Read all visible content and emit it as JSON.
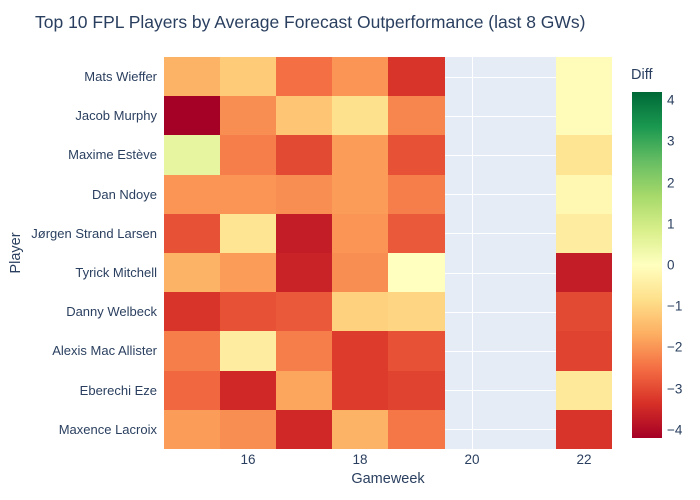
{
  "title": "Top 10 FPL Players by Average Forecast Outperformance (last 8 GWs)",
  "colors": {
    "text": "#2a3f5f",
    "page_bg": "#ffffff",
    "plot_bg": "#e5ecf6",
    "grid": "#ffffff"
  },
  "chart_data": {
    "type": "heatmap",
    "title": "Top 10 FPL Players by Average Forecast Outperformance (last 8 GWs)",
    "xlabel": "Gameweek",
    "ylabel": "Player",
    "x": [
      15,
      16,
      17,
      18,
      19,
      20,
      21,
      22
    ],
    "x_ticks_at": [
      16,
      18,
      20,
      22
    ],
    "x_tick_labels": [
      "16",
      "18",
      "20",
      "22"
    ],
    "players": [
      "Mats Wieffer",
      "Jacob Murphy",
      "Maxime Estève",
      "Dan Ndoye",
      "Jørgen Strand Larsen",
      "Tyrick Mitchell",
      "Danny Welbeck",
      "Alexis Mac Allister",
      "Eberechi Eze",
      "Maxence Lacroix"
    ],
    "z": [
      [
        -1.6,
        -1.2,
        -2.5,
        -2.0,
        -3.3,
        null,
        null,
        -0.1
      ],
      [
        -4.2,
        -2.1,
        -1.3,
        -0.8,
        -2.2,
        null,
        null,
        -0.1
      ],
      [
        0.5,
        -2.3,
        -3.0,
        -1.9,
        -2.9,
        null,
        null,
        -0.7
      ],
      [
        -2.0,
        -2.0,
        -2.1,
        -1.9,
        -2.3,
        null,
        null,
        -0.2
      ],
      [
        -2.9,
        -0.7,
        -3.7,
        -2.0,
        -2.8,
        null,
        null,
        -0.5
      ],
      [
        -1.6,
        -1.9,
        -3.6,
        -2.1,
        0.0,
        null,
        null,
        -3.7
      ],
      [
        -3.3,
        -2.9,
        -2.8,
        -1.1,
        -1.0,
        null,
        null,
        -3.0
      ],
      [
        -2.3,
        -0.5,
        -2.3,
        -3.2,
        -2.9,
        null,
        null,
        -3.1
      ],
      [
        -2.6,
        -3.5,
        -1.8,
        -3.2,
        -3.1,
        null,
        null,
        -0.6
      ],
      [
        -1.9,
        -2.1,
        -3.5,
        -1.6,
        -2.4,
        null,
        null,
        -3.3
      ]
    ],
    "zmin": -4.2,
    "zmax": 4.2,
    "grid_on": true,
    "colorbar": {
      "title": "Diff",
      "tick_values": [
        4,
        3,
        2,
        1,
        0,
        -1,
        -2,
        -3,
        -4
      ],
      "tick_labels": [
        "4",
        "3",
        "2",
        "1",
        "0",
        "−1",
        "−2",
        "−3",
        "−4"
      ]
    },
    "colorscale": {
      "name": "RdYlGn",
      "stops": [
        "#a50026",
        "#d73027",
        "#f46d43",
        "#fdae61",
        "#fee08b",
        "#ffffbf",
        "#d9ef8b",
        "#a6d96a",
        "#66bd63",
        "#1a9850",
        "#006837"
      ]
    }
  }
}
